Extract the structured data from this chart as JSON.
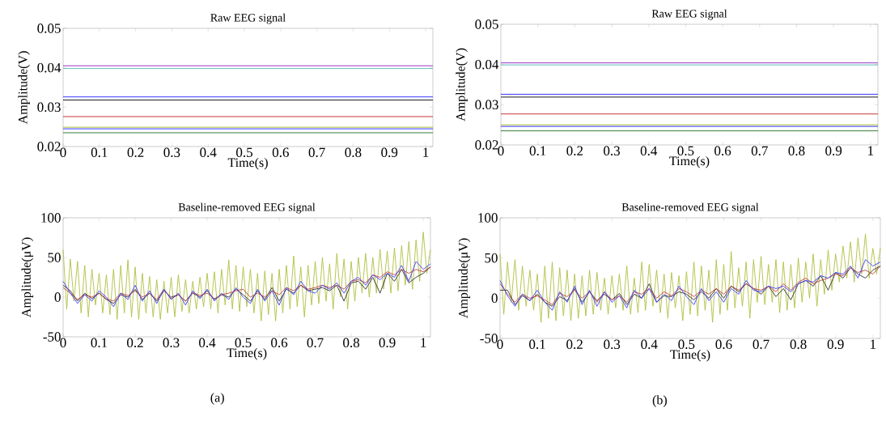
{
  "chart_data": [
    {
      "type": "line",
      "title": "Raw EEG signal",
      "xlabel": "Time(s)",
      "ylabel": "Amplitude(V)",
      "xlim": [
        0,
        1.02
      ],
      "ylim": [
        0.02,
        0.05
      ],
      "xticks": [
        0,
        0.1,
        0.2,
        0.3,
        0.4,
        0.5,
        0.6,
        0.7,
        0.8,
        0.9,
        1
      ],
      "yticks": [
        0.02,
        0.03,
        0.04,
        0.05
      ],
      "x": [
        0,
        1.02
      ],
      "series": [
        {
          "color": "#9020c0",
          "values": [
            0.0405,
            0.0405
          ]
        },
        {
          "color": "#50b8b8",
          "values": [
            0.0398,
            0.0398
          ]
        },
        {
          "color": "#2020ff",
          "values": [
            0.0326,
            0.0326
          ]
        },
        {
          "color": "#000000",
          "values": [
            0.0318,
            0.0318
          ]
        },
        {
          "color": "#c02020",
          "values": [
            0.0276,
            0.0276
          ]
        },
        {
          "color": "#a0b820",
          "values": [
            0.0249,
            0.0249
          ]
        },
        {
          "color": "#2020ff",
          "values": [
            0.0245,
            0.0245
          ]
        },
        {
          "color": "#207020",
          "values": [
            0.0235,
            0.0235
          ]
        }
      ]
    },
    {
      "type": "line",
      "title": "Raw EEG signal",
      "xlabel": "Time(s)",
      "ylabel": "Amplitude(V)",
      "xlim": [
        0,
        1.02
      ],
      "ylim": [
        0.02,
        0.05
      ],
      "xticks": [
        0,
        0.1,
        0.2,
        0.3,
        0.4,
        0.5,
        0.6,
        0.7,
        0.8,
        0.9,
        1
      ],
      "yticks": [
        0.02,
        0.03,
        0.04,
        0.05
      ],
      "x": [
        0,
        1.02
      ],
      "series": [
        {
          "color": "#9020c0",
          "values": [
            0.0404,
            0.0404
          ]
        },
        {
          "color": "#50b8b8",
          "values": [
            0.0399,
            0.0399
          ]
        },
        {
          "color": "#2020ff",
          "values": [
            0.0326,
            0.0326
          ]
        },
        {
          "color": "#000000",
          "values": [
            0.0319,
            0.0319
          ]
        },
        {
          "color": "#c02020",
          "values": [
            0.0277,
            0.0277
          ]
        },
        {
          "color": "#a0b820",
          "values": [
            0.025,
            0.025
          ]
        },
        {
          "color": "#2020ff",
          "values": [
            0.0246,
            0.0246
          ]
        },
        {
          "color": "#207020",
          "values": [
            0.0235,
            0.0235
          ]
        }
      ]
    },
    {
      "type": "line",
      "title": "Baseline-removed EEG signal",
      "xlabel": "Time(s)",
      "ylabel": "Amplitude(μV)",
      "xlim": [
        0,
        1.02
      ],
      "ylim": [
        -50,
        100
      ],
      "xticks": [
        0,
        0.1,
        0.2,
        0.3,
        0.4,
        0.5,
        0.6,
        0.7,
        0.8,
        0.9,
        1
      ],
      "yticks": [
        -50,
        0,
        50,
        100
      ],
      "annotations": [
        "(a)"
      ],
      "x": [
        0,
        0.02,
        0.04,
        0.06,
        0.08,
        0.1,
        0.12,
        0.14,
        0.16,
        0.18,
        0.2,
        0.22,
        0.24,
        0.26,
        0.28,
        0.3,
        0.32,
        0.34,
        0.36,
        0.38,
        0.4,
        0.42,
        0.44,
        0.46,
        0.48,
        0.5,
        0.52,
        0.54,
        0.56,
        0.58,
        0.6,
        0.62,
        0.64,
        0.66,
        0.68,
        0.7,
        0.72,
        0.74,
        0.76,
        0.78,
        0.8,
        0.82,
        0.84,
        0.86,
        0.88,
        0.9,
        0.92,
        0.94,
        0.96,
        0.98,
        1,
        1.02
      ],
      "series": [
        {
          "color": "#b0c040",
          "x": [
            0,
            0.01,
            0.02,
            0.03,
            0.04,
            0.05,
            0.06,
            0.07,
            0.08,
            0.09,
            0.1,
            0.11,
            0.12,
            0.13,
            0.14,
            0.15,
            0.16,
            0.17,
            0.18,
            0.19,
            0.2,
            0.21,
            0.22,
            0.23,
            0.24,
            0.25,
            0.26,
            0.27,
            0.28,
            0.29,
            0.3,
            0.31,
            0.32,
            0.33,
            0.34,
            0.35,
            0.36,
            0.37,
            0.38,
            0.39,
            0.4,
            0.41,
            0.42,
            0.43,
            0.44,
            0.45,
            0.46,
            0.47,
            0.48,
            0.49,
            0.5,
            0.51,
            0.52,
            0.53,
            0.54,
            0.55,
            0.56,
            0.57,
            0.58,
            0.59,
            0.6,
            0.61,
            0.62,
            0.63,
            0.64,
            0.65,
            0.66,
            0.67,
            0.68,
            0.69,
            0.7,
            0.71,
            0.72,
            0.73,
            0.74,
            0.75,
            0.76,
            0.77,
            0.78,
            0.79,
            0.8,
            0.81,
            0.82,
            0.83,
            0.84,
            0.85,
            0.86,
            0.87,
            0.88,
            0.89,
            0.9,
            0.91,
            0.92,
            0.93,
            0.94,
            0.95,
            0.96,
            0.97,
            0.98,
            0.99,
            1,
            1.01,
            1.02
          ],
          "values": [
            60,
            -15,
            48,
            -5,
            45,
            -20,
            40,
            -25,
            35,
            -10,
            30,
            -20,
            28,
            -22,
            35,
            -28,
            40,
            -20,
            47,
            -25,
            38,
            -28,
            30,
            -20,
            26,
            -25,
            22,
            -28,
            20,
            -20,
            25,
            -25,
            28,
            -18,
            22,
            -20,
            20,
            -15,
            25,
            -12,
            30,
            -15,
            32,
            -20,
            35,
            -10,
            47,
            -15,
            40,
            -18,
            38,
            -12,
            35,
            -20,
            30,
            -30,
            33,
            -22,
            30,
            -30,
            35,
            -20,
            40,
            -15,
            52,
            -12,
            38,
            -25,
            40,
            -10,
            45,
            -8,
            50,
            -5,
            42,
            -15,
            55,
            0,
            48,
            -15,
            45,
            -5,
            50,
            5,
            55,
            0,
            50,
            5,
            60,
            10,
            58,
            5,
            62,
            8,
            65,
            15,
            70,
            10,
            72,
            20,
            82,
            30,
            60
          ]
        },
        {
          "color": "#303030",
          "values": [
            15,
            8,
            -5,
            5,
            -2,
            5,
            -3,
            -8,
            3,
            0,
            10,
            -3,
            5,
            -5,
            8,
            0,
            3,
            -5,
            5,
            0,
            8,
            -3,
            3,
            0,
            10,
            3,
            -5,
            8,
            -3,
            12,
            -5,
            10,
            5,
            15,
            8,
            10,
            12,
            8,
            15,
            -5,
            18,
            20,
            10,
            25,
            5,
            30,
            20,
            35,
            18,
            25,
            30,
            38
          ]
        },
        {
          "color": "#c04040",
          "values": [
            12,
            5,
            -3,
            3,
            0,
            5,
            -2,
            -5,
            5,
            2,
            8,
            0,
            5,
            -3,
            10,
            -2,
            3,
            -5,
            6,
            2,
            5,
            -2,
            3,
            5,
            8,
            10,
            0,
            5,
            0,
            8,
            3,
            12,
            8,
            15,
            10,
            12,
            15,
            12,
            15,
            10,
            20,
            22,
            18,
            28,
            25,
            32,
            28,
            35,
            30,
            35,
            32,
            38
          ]
        },
        {
          "color": "#4040ff",
          "values": [
            20,
            5,
            -8,
            3,
            -5,
            8,
            0,
            -12,
            5,
            -3,
            15,
            -5,
            8,
            -8,
            10,
            -3,
            5,
            -10,
            8,
            -2,
            10,
            -5,
            5,
            -3,
            12,
            0,
            -8,
            10,
            -5,
            8,
            -10,
            12,
            3,
            20,
            8,
            5,
            15,
            10,
            18,
            5,
            20,
            25,
            15,
            28,
            22,
            30,
            25,
            40,
            20,
            45,
            35,
            42
          ]
        }
      ]
    },
    {
      "type": "line",
      "title": "Baseline-removed EEG signal",
      "xlabel": "Time(s)",
      "ylabel": "Amplitude(μV)",
      "xlim": [
        0,
        1.02
      ],
      "ylim": [
        -50,
        100
      ],
      "xticks": [
        0,
        0.1,
        0.2,
        0.3,
        0.4,
        0.5,
        0.6,
        0.7,
        0.8,
        0.9,
        1
      ],
      "yticks": [
        -50,
        0,
        50,
        100
      ],
      "annotations": [
        "(b)"
      ],
      "x": [
        0,
        0.02,
        0.04,
        0.06,
        0.08,
        0.1,
        0.12,
        0.14,
        0.16,
        0.18,
        0.2,
        0.22,
        0.24,
        0.26,
        0.28,
        0.3,
        0.32,
        0.34,
        0.36,
        0.38,
        0.4,
        0.42,
        0.44,
        0.46,
        0.48,
        0.5,
        0.52,
        0.54,
        0.56,
        0.58,
        0.6,
        0.62,
        0.64,
        0.66,
        0.68,
        0.7,
        0.72,
        0.74,
        0.76,
        0.78,
        0.8,
        0.82,
        0.84,
        0.86,
        0.88,
        0.9,
        0.92,
        0.94,
        0.96,
        0.98,
        1,
        1.02
      ],
      "series": [
        {
          "color": "#b0c040",
          "x": [
            0,
            0.01,
            0.02,
            0.03,
            0.04,
            0.05,
            0.06,
            0.07,
            0.08,
            0.09,
            0.1,
            0.11,
            0.12,
            0.13,
            0.14,
            0.15,
            0.16,
            0.17,
            0.18,
            0.19,
            0.2,
            0.21,
            0.22,
            0.23,
            0.24,
            0.25,
            0.26,
            0.27,
            0.28,
            0.29,
            0.3,
            0.31,
            0.32,
            0.33,
            0.34,
            0.35,
            0.36,
            0.37,
            0.38,
            0.39,
            0.4,
            0.41,
            0.42,
            0.43,
            0.44,
            0.45,
            0.46,
            0.47,
            0.48,
            0.49,
            0.5,
            0.51,
            0.52,
            0.53,
            0.54,
            0.55,
            0.56,
            0.57,
            0.58,
            0.59,
            0.6,
            0.61,
            0.62,
            0.63,
            0.64,
            0.65,
            0.66,
            0.67,
            0.68,
            0.69,
            0.7,
            0.71,
            0.72,
            0.73,
            0.74,
            0.75,
            0.76,
            0.77,
            0.78,
            0.79,
            0.8,
            0.81,
            0.82,
            0.83,
            0.84,
            0.85,
            0.86,
            0.87,
            0.88,
            0.89,
            0.9,
            0.91,
            0.92,
            0.93,
            0.94,
            0.95,
            0.96,
            0.97,
            0.98,
            0.99,
            1,
            1.01,
            1.02
          ],
          "values": [
            55,
            -20,
            45,
            -5,
            48,
            -15,
            40,
            -10,
            35,
            -15,
            30,
            -30,
            40,
            -25,
            45,
            -28,
            38,
            -22,
            35,
            -28,
            30,
            -25,
            28,
            -22,
            35,
            -20,
            32,
            -15,
            25,
            -20,
            28,
            -12,
            30,
            -15,
            40,
            -20,
            25,
            -18,
            45,
            -15,
            42,
            -10,
            35,
            -18,
            30,
            -25,
            32,
            -12,
            28,
            -28,
            33,
            -20,
            45,
            -22,
            40,
            -15,
            35,
            -30,
            48,
            -20,
            42,
            -15,
            58,
            -12,
            38,
            -10,
            45,
            -25,
            48,
            -5,
            52,
            -8,
            42,
            -5,
            48,
            -18,
            45,
            -15,
            42,
            -12,
            50,
            -5,
            45,
            0,
            55,
            -10,
            48,
            5,
            60,
            10,
            55,
            20,
            65,
            25,
            70,
            20,
            75,
            30,
            80,
            25,
            62,
            30,
            62
          ]
        },
        {
          "color": "#303030",
          "values": [
            10,
            10,
            -8,
            3,
            -3,
            5,
            -5,
            -10,
            2,
            -3,
            12,
            -5,
            8,
            -3,
            5,
            -2,
            6,
            -8,
            5,
            0,
            18,
            -5,
            3,
            2,
            8,
            5,
            -2,
            8,
            0,
            12,
            0,
            15,
            8,
            18,
            12,
            5,
            15,
            2,
            12,
            -2,
            18,
            22,
            15,
            28,
            10,
            32,
            25,
            38,
            30,
            25,
            35,
            40
          ]
        },
        {
          "color": "#c04040",
          "values": [
            18,
            5,
            -5,
            5,
            0,
            3,
            -2,
            -8,
            6,
            2,
            10,
            0,
            8,
            -5,
            8,
            -2,
            3,
            -5,
            8,
            5,
            12,
            0,
            8,
            3,
            12,
            8,
            2,
            10,
            5,
            12,
            5,
            15,
            10,
            18,
            12,
            10,
            15,
            8,
            18,
            10,
            20,
            25,
            18,
            22,
            25,
            30,
            28,
            38,
            32,
            35,
            30,
            40
          ]
        },
        {
          "color": "#4040ff",
          "values": [
            22,
            3,
            -10,
            5,
            -3,
            10,
            -5,
            -15,
            8,
            -5,
            15,
            -8,
            10,
            -10,
            8,
            -5,
            3,
            -12,
            10,
            0,
            12,
            -5,
            5,
            -3,
            15,
            2,
            -8,
            12,
            -3,
            8,
            -5,
            12,
            5,
            22,
            10,
            8,
            15,
            12,
            15,
            8,
            18,
            22,
            20,
            28,
            25,
            32,
            30,
            40,
            25,
            48,
            40,
            45
          ]
        }
      ]
    }
  ]
}
